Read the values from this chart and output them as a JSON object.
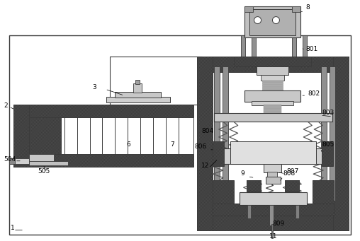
{
  "bg_color": "#ffffff",
  "lc": "#3a3a3a",
  "hatch_fc": "#d8d8d8",
  "fig_width": 5.08,
  "fig_height": 3.41,
  "dpi": 100
}
